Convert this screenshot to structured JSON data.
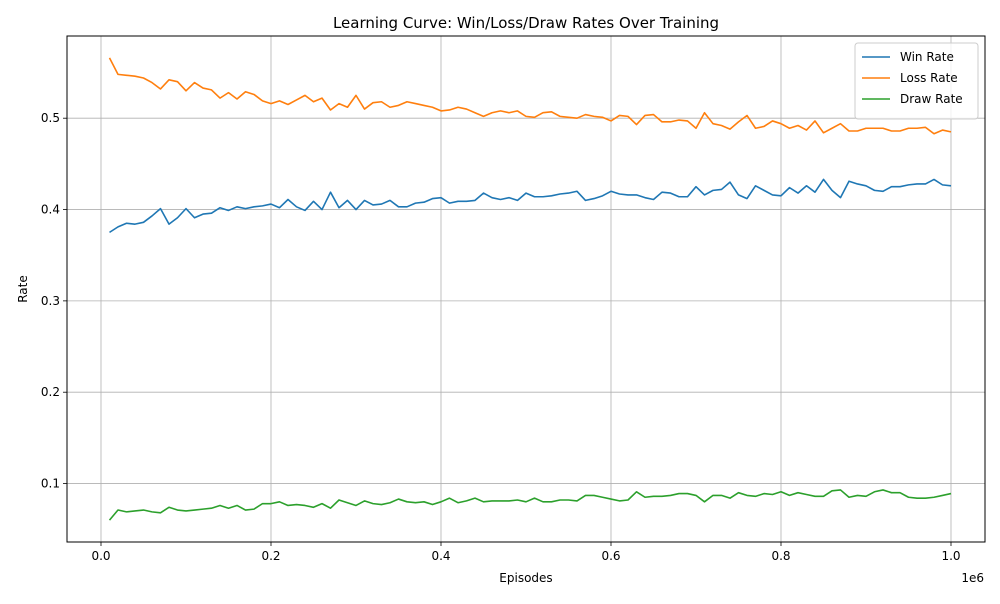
{
  "chart_data": {
    "type": "line",
    "title": "Learning Curve: Win/Loss/Draw Rates Over Training",
    "xlabel": "Episodes",
    "ylabel": "Rate",
    "x_offset_label": "1e6",
    "xlim": [
      -0.04,
      1.04
    ],
    "ylim": [
      0.036,
      0.59
    ],
    "xticks": [
      0.0,
      0.2,
      0.4,
      0.6,
      0.8,
      1.0
    ],
    "xtick_labels": [
      "0.0",
      "0.2",
      "0.4",
      "0.6",
      "0.8",
      "1.0"
    ],
    "yticks": [
      0.1,
      0.2,
      0.3,
      0.4,
      0.5
    ],
    "ytick_labels": [
      "0.1",
      "0.2",
      "0.3",
      "0.4",
      "0.5"
    ],
    "grid": true,
    "legend_position": "top-right",
    "x": [
      0.01,
      0.02,
      0.03,
      0.04,
      0.05,
      0.06,
      0.07,
      0.08,
      0.09,
      0.1,
      0.11,
      0.12,
      0.13,
      0.14,
      0.15,
      0.16,
      0.17,
      0.18,
      0.19,
      0.2,
      0.21,
      0.22,
      0.23,
      0.24,
      0.25,
      0.26,
      0.27,
      0.28,
      0.29,
      0.3,
      0.31,
      0.32,
      0.33,
      0.34,
      0.35,
      0.36,
      0.37,
      0.38,
      0.39,
      0.4,
      0.41,
      0.42,
      0.43,
      0.44,
      0.45,
      0.46,
      0.47,
      0.48,
      0.49,
      0.5,
      0.51,
      0.52,
      0.53,
      0.54,
      0.55,
      0.56,
      0.57,
      0.58,
      0.59,
      0.6,
      0.61,
      0.62,
      0.63,
      0.64,
      0.65,
      0.66,
      0.67,
      0.68,
      0.69,
      0.7,
      0.71,
      0.72,
      0.73,
      0.74,
      0.75,
      0.76,
      0.77,
      0.78,
      0.79,
      0.8,
      0.81,
      0.82,
      0.83,
      0.84,
      0.85,
      0.86,
      0.87,
      0.88,
      0.89,
      0.9,
      0.91,
      0.92,
      0.93,
      0.94,
      0.95,
      0.96,
      0.97,
      0.98,
      0.99,
      1.0
    ],
    "series": [
      {
        "name": "Win Rate",
        "color": "#1f77b4",
        "values": [
          0.375,
          0.381,
          0.385,
          0.384,
          0.386,
          0.393,
          0.401,
          0.384,
          0.391,
          0.401,
          0.391,
          0.395,
          0.396,
          0.402,
          0.399,
          0.403,
          0.401,
          0.403,
          0.404,
          0.406,
          0.402,
          0.411,
          0.403,
          0.399,
          0.409,
          0.4,
          0.419,
          0.402,
          0.41,
          0.4,
          0.41,
          0.405,
          0.406,
          0.41,
          0.403,
          0.403,
          0.407,
          0.408,
          0.412,
          0.413,
          0.407,
          0.409,
          0.409,
          0.41,
          0.418,
          0.413,
          0.411,
          0.413,
          0.41,
          0.418,
          0.414,
          0.414,
          0.415,
          0.417,
          0.418,
          0.42,
          0.41,
          0.412,
          0.415,
          0.42,
          0.417,
          0.416,
          0.416,
          0.413,
          0.411,
          0.419,
          0.418,
          0.414,
          0.414,
          0.425,
          0.416,
          0.421,
          0.422,
          0.43,
          0.416,
          0.412,
          0.426,
          0.421,
          0.416,
          0.415,
          0.424,
          0.418,
          0.426,
          0.419,
          0.433,
          0.421,
          0.413,
          0.431,
          0.428,
          0.426,
          0.421,
          0.42,
          0.425,
          0.425,
          0.427,
          0.428,
          0.428,
          0.433,
          0.427,
          0.426
        ]
      },
      {
        "name": "Loss Rate",
        "color": "#ff7f0e",
        "values": [
          0.566,
          0.548,
          0.547,
          0.546,
          0.544,
          0.539,
          0.532,
          0.542,
          0.54,
          0.53,
          0.539,
          0.533,
          0.531,
          0.522,
          0.528,
          0.521,
          0.529,
          0.526,
          0.519,
          0.516,
          0.519,
          0.515,
          0.52,
          0.525,
          0.518,
          0.522,
          0.509,
          0.516,
          0.512,
          0.525,
          0.51,
          0.517,
          0.518,
          0.512,
          0.514,
          0.518,
          0.516,
          0.514,
          0.512,
          0.508,
          0.509,
          0.512,
          0.51,
          0.506,
          0.502,
          0.506,
          0.508,
          0.506,
          0.508,
          0.502,
          0.501,
          0.506,
          0.507,
          0.502,
          0.501,
          0.5,
          0.504,
          0.502,
          0.501,
          0.497,
          0.503,
          0.502,
          0.493,
          0.503,
          0.504,
          0.496,
          0.496,
          0.498,
          0.497,
          0.489,
          0.506,
          0.494,
          0.492,
          0.488,
          0.496,
          0.503,
          0.489,
          0.491,
          0.497,
          0.494,
          0.489,
          0.492,
          0.487,
          0.497,
          0.484,
          0.489,
          0.494,
          0.486,
          0.486,
          0.489,
          0.489,
          0.489,
          0.486,
          0.486,
          0.489,
          0.489,
          0.49,
          0.483,
          0.487,
          0.485
        ]
      },
      {
        "name": "Draw Rate",
        "color": "#2ca02c",
        "values": [
          0.06,
          0.071,
          0.069,
          0.07,
          0.071,
          0.069,
          0.068,
          0.074,
          0.071,
          0.07,
          0.071,
          0.072,
          0.073,
          0.076,
          0.073,
          0.076,
          0.071,
          0.072,
          0.078,
          0.078,
          0.08,
          0.076,
          0.077,
          0.076,
          0.074,
          0.078,
          0.073,
          0.082,
          0.079,
          0.076,
          0.081,
          0.078,
          0.077,
          0.079,
          0.083,
          0.08,
          0.079,
          0.08,
          0.077,
          0.08,
          0.084,
          0.079,
          0.081,
          0.084,
          0.08,
          0.081,
          0.081,
          0.081,
          0.082,
          0.08,
          0.084,
          0.08,
          0.08,
          0.082,
          0.082,
          0.081,
          0.087,
          0.087,
          0.085,
          0.083,
          0.081,
          0.082,
          0.091,
          0.085,
          0.086,
          0.086,
          0.087,
          0.089,
          0.089,
          0.087,
          0.08,
          0.087,
          0.087,
          0.084,
          0.09,
          0.087,
          0.086,
          0.089,
          0.088,
          0.091,
          0.087,
          0.09,
          0.088,
          0.086,
          0.086,
          0.092,
          0.093,
          0.085,
          0.087,
          0.086,
          0.091,
          0.093,
          0.09,
          0.09,
          0.085,
          0.084,
          0.084,
          0.085,
          0.087,
          0.089
        ]
      }
    ]
  }
}
